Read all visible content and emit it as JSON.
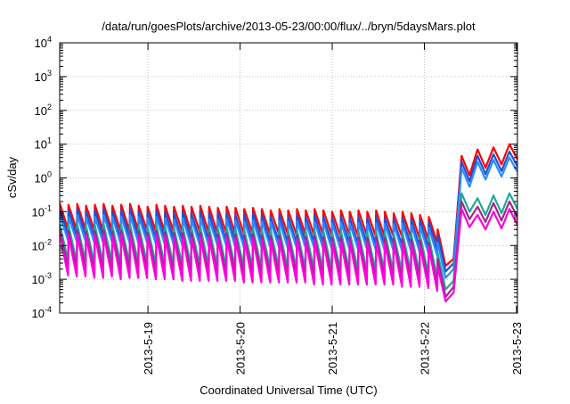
{
  "chart_data": {
    "type": "line",
    "title": "/data/run/goesPlots/archive/2013-05-23/00:00/flux/../bryn/5daysMars.plot",
    "xlabel": "Coordinated Universal Time (UTC)",
    "ylabel": "cSv/day",
    "yscale": "log",
    "ylim": [
      0.0001,
      10000
    ],
    "y_tick_exponents": [
      -4,
      -3,
      -2,
      -1,
      0,
      1,
      2,
      3,
      4
    ],
    "xlim": [
      "2013-05-18 01:00",
      "2013-05-23 00:15"
    ],
    "x_ticks": [
      "2013-5-19",
      "2013-5-20",
      "2013-5-21",
      "2013-5-22",
      "2013-5-23"
    ],
    "grid": true,
    "legend": "none",
    "series": [
      {
        "color": "#ff0000",
        "peaks": [
          0.18,
          0.16,
          0.17,
          0.15,
          0.16,
          0.17,
          0.15,
          0.16,
          0.17,
          0.15,
          0.14,
          0.16,
          0.15,
          0.14,
          0.15,
          0.14,
          0.15,
          0.14,
          0.13,
          0.14,
          0.13,
          0.12,
          0.13,
          0.12,
          0.11,
          0.12,
          0.11,
          0.12,
          0.11,
          0.12,
          0.11,
          0.1,
          0.11,
          0.1,
          0.11,
          0.1,
          0.11,
          0.1,
          0.09,
          0.1,
          0.09,
          0.08,
          0.07
        ],
        "troughs": [
          0.03,
          0.028,
          0.029,
          0.028,
          0.027,
          0.028,
          0.026,
          0.027,
          0.028,
          0.027,
          0.026,
          0.025,
          0.026,
          0.025,
          0.024,
          0.025,
          0.024,
          0.023,
          0.024,
          0.023,
          0.022,
          0.023,
          0.022,
          0.021,
          0.022,
          0.021,
          0.02,
          0.021,
          0.02,
          0.021,
          0.02,
          0.019,
          0.02,
          0.019,
          0.02,
          0.019,
          0.018,
          0.019,
          0.018,
          0.017,
          0.016,
          0.015,
          0.012
        ],
        "recovery": [
          0.03,
          0.0025,
          0.004,
          4.5,
          1.2,
          7.0,
          2.0,
          8.0,
          2.5,
          10,
          3.5
        ]
      },
      {
        "color": "#1f50d8",
        "peaks": [
          0.12,
          0.11,
          0.12,
          0.1,
          0.11,
          0.12,
          0.1,
          0.11,
          0.12,
          0.1,
          0.1,
          0.11,
          0.1,
          0.09,
          0.1,
          0.09,
          0.1,
          0.09,
          0.09,
          0.09,
          0.08,
          0.08,
          0.09,
          0.08,
          0.07,
          0.08,
          0.07,
          0.08,
          0.07,
          0.08,
          0.07,
          0.065,
          0.07,
          0.065,
          0.07,
          0.065,
          0.07,
          0.065,
          0.06,
          0.065,
          0.06,
          0.055,
          0.05
        ],
        "troughs": [
          0.02,
          0.018,
          0.019,
          0.018,
          0.017,
          0.018,
          0.016,
          0.017,
          0.018,
          0.017,
          0.016,
          0.015,
          0.016,
          0.015,
          0.015,
          0.015,
          0.014,
          0.014,
          0.014,
          0.014,
          0.013,
          0.014,
          0.013,
          0.013,
          0.013,
          0.012,
          0.012,
          0.013,
          0.012,
          0.012,
          0.012,
          0.011,
          0.012,
          0.011,
          0.012,
          0.011,
          0.011,
          0.011,
          0.01,
          0.01,
          0.009,
          0.009,
          0.007
        ],
        "recovery": [
          0.02,
          0.0017,
          0.003,
          3.0,
          0.8,
          4.5,
          1.3,
          5.0,
          1.6,
          6.0,
          2.2
        ]
      },
      {
        "color": "#2a8cff",
        "peaks": [
          0.08,
          0.07,
          0.08,
          0.07,
          0.07,
          0.08,
          0.07,
          0.07,
          0.08,
          0.07,
          0.065,
          0.07,
          0.065,
          0.06,
          0.065,
          0.06,
          0.065,
          0.06,
          0.058,
          0.06,
          0.055,
          0.052,
          0.056,
          0.052,
          0.05,
          0.052,
          0.05,
          0.052,
          0.048,
          0.05,
          0.048,
          0.045,
          0.048,
          0.045,
          0.047,
          0.044,
          0.046,
          0.044,
          0.042,
          0.044,
          0.04,
          0.037,
          0.033
        ],
        "troughs": [
          0.014,
          0.013,
          0.013,
          0.012,
          0.012,
          0.013,
          0.011,
          0.012,
          0.012,
          0.012,
          0.011,
          0.011,
          0.011,
          0.01,
          0.01,
          0.01,
          0.01,
          0.01,
          0.01,
          0.0095,
          0.009,
          0.0095,
          0.009,
          0.009,
          0.009,
          0.0085,
          0.0085,
          0.009,
          0.0085,
          0.0085,
          0.008,
          0.008,
          0.008,
          0.0078,
          0.008,
          0.0076,
          0.0075,
          0.0075,
          0.007,
          0.007,
          0.0065,
          0.006,
          0.005
        ],
        "recovery": [
          0.012,
          0.0011,
          0.002,
          2.0,
          0.55,
          3.0,
          0.9,
          3.4,
          1.1,
          4.0,
          1.5
        ]
      },
      {
        "color": "#20a89a",
        "peaks": [
          0.045,
          0.04,
          0.043,
          0.038,
          0.04,
          0.043,
          0.038,
          0.04,
          0.042,
          0.038,
          0.036,
          0.04,
          0.037,
          0.034,
          0.036,
          0.034,
          0.036,
          0.034,
          0.032,
          0.034,
          0.031,
          0.03,
          0.032,
          0.03,
          0.028,
          0.03,
          0.028,
          0.029,
          0.027,
          0.028,
          0.027,
          0.025,
          0.027,
          0.025,
          0.026,
          0.025,
          0.026,
          0.025,
          0.023,
          0.024,
          0.022,
          0.021,
          0.018
        ],
        "troughs": [
          0.0035,
          0.0032,
          0.0033,
          0.003,
          0.003,
          0.0032,
          0.0028,
          0.003,
          0.003,
          0.0029,
          0.0027,
          0.0027,
          0.0026,
          0.0025,
          0.0025,
          0.0025,
          0.0024,
          0.0023,
          0.0023,
          0.0023,
          0.0022,
          0.0022,
          0.0021,
          0.0021,
          0.0021,
          0.002,
          0.002,
          0.002,
          0.0019,
          0.0019,
          0.0019,
          0.0018,
          0.0018,
          0.0018,
          0.0018,
          0.0017,
          0.0017,
          0.0017,
          0.0016,
          0.0016,
          0.0015,
          0.0014,
          0.0011
        ],
        "recovery": [
          0.006,
          0.0005,
          0.0009,
          0.35,
          0.1,
          0.25,
          0.08,
          0.3,
          0.09,
          0.35,
          0.12
        ]
      },
      {
        "color": "#9b2a8a",
        "peaks": [
          0.03,
          0.027,
          0.029,
          0.026,
          0.027,
          0.029,
          0.026,
          0.027,
          0.028,
          0.026,
          0.024,
          0.027,
          0.025,
          0.023,
          0.024,
          0.023,
          0.024,
          0.023,
          0.022,
          0.023,
          0.021,
          0.02,
          0.022,
          0.02,
          0.019,
          0.02,
          0.019,
          0.02,
          0.018,
          0.019,
          0.018,
          0.017,
          0.018,
          0.017,
          0.018,
          0.017,
          0.018,
          0.017,
          0.016,
          0.016,
          0.015,
          0.014,
          0.012
        ],
        "troughs": [
          0.0022,
          0.002,
          0.0021,
          0.0019,
          0.0019,
          0.002,
          0.0018,
          0.0019,
          0.0019,
          0.0018,
          0.0017,
          0.0017,
          0.0016,
          0.0016,
          0.0016,
          0.0016,
          0.0015,
          0.0015,
          0.0015,
          0.0015,
          0.0014,
          0.0014,
          0.0014,
          0.0013,
          0.0013,
          0.0013,
          0.0013,
          0.0013,
          0.0012,
          0.0012,
          0.0012,
          0.0012,
          0.0012,
          0.0011,
          0.0011,
          0.0011,
          0.0011,
          0.0011,
          0.001,
          0.001,
          0.001,
          0.0009,
          0.0007
        ],
        "recovery": [
          0.004,
          0.0003,
          0.0006,
          0.2,
          0.06,
          0.14,
          0.05,
          0.18,
          0.055,
          0.2,
          0.07
        ]
      },
      {
        "color": "#ff00dd",
        "peaks": [
          0.022,
          0.02,
          0.021,
          0.019,
          0.02,
          0.021,
          0.019,
          0.02,
          0.021,
          0.019,
          0.018,
          0.02,
          0.018,
          0.017,
          0.018,
          0.017,
          0.018,
          0.017,
          0.016,
          0.017,
          0.016,
          0.015,
          0.016,
          0.015,
          0.014,
          0.015,
          0.014,
          0.015,
          0.014,
          0.014,
          0.013,
          0.013,
          0.013,
          0.013,
          0.013,
          0.012,
          0.013,
          0.012,
          0.012,
          0.012,
          0.011,
          0.01,
          0.009
        ],
        "troughs": [
          0.0013,
          0.0012,
          0.0012,
          0.0011,
          0.0011,
          0.0012,
          0.001,
          0.0011,
          0.0011,
          0.0011,
          0.001,
          0.001,
          0.001,
          0.0009,
          0.0009,
          0.0009,
          0.0009,
          0.0009,
          0.0009,
          0.0009,
          0.0008,
          0.0008,
          0.0008,
          0.0008,
          0.0008,
          0.0008,
          0.0008,
          0.0008,
          0.0007,
          0.0007,
          0.0007,
          0.0007,
          0.0007,
          0.0007,
          0.0007,
          0.0007,
          0.0007,
          0.0007,
          0.0006,
          0.0006,
          0.0006,
          0.00055,
          0.00045
        ],
        "recovery": [
          0.0025,
          0.00022,
          0.0004,
          0.12,
          0.035,
          0.08,
          0.03,
          0.1,
          0.032,
          0.12,
          0.04
        ]
      }
    ]
  }
}
